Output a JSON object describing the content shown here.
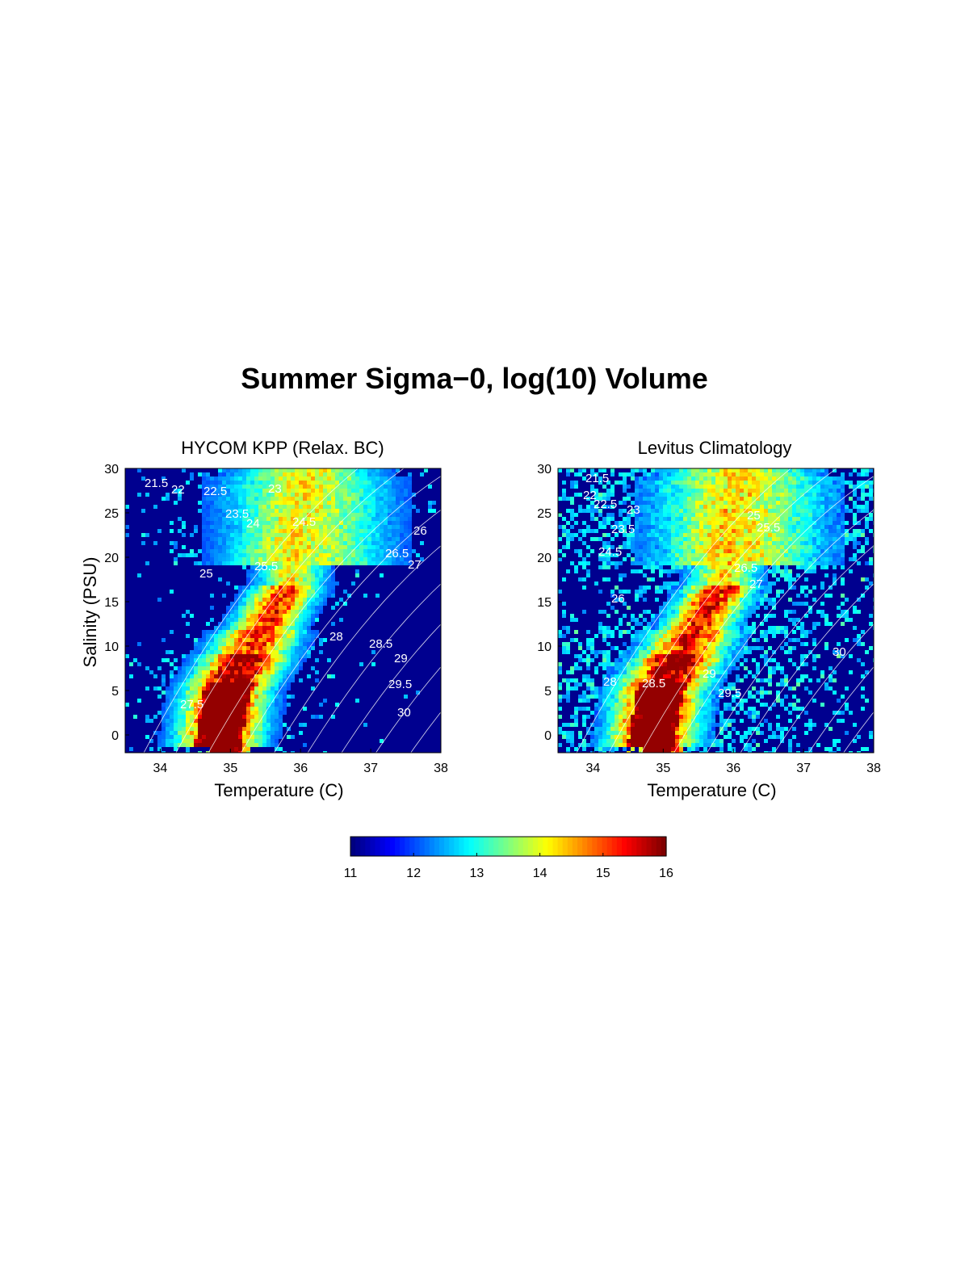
{
  "figure_title": "Summer Sigma−0, log(10) Volume",
  "chart_data": [
    {
      "type": "heatmap",
      "title": "HYCOM KPP (Relax. BC)",
      "xlabel": "Temperature (C)",
      "ylabel": "Salinity (PSU)",
      "xlim": [
        33.5,
        38
      ],
      "ylim": [
        -2,
        30
      ],
      "xticks": [
        "34",
        "35",
        "36",
        "37",
        "38"
      ],
      "yticks": [
        "0",
        "5",
        "10",
        "15",
        "20",
        "25",
        "30"
      ],
      "background_color": "#00008f",
      "contour_labels": [
        "21.5",
        "22",
        "22.5",
        "23",
        "23.5",
        "24",
        "24.5",
        "25",
        "25.5",
        "26",
        "26.5",
        "27",
        "27.5",
        "28",
        "28.5",
        "29",
        "29.5",
        "30"
      ],
      "colormap": "jet",
      "clim": [
        11,
        16
      ]
    },
    {
      "type": "heatmap",
      "title": "Levitus Climatology",
      "xlabel": "Temperature (C)",
      "ylabel": "",
      "xlim": [
        33.5,
        38
      ],
      "ylim": [
        -2,
        30
      ],
      "xticks": [
        "34",
        "35",
        "36",
        "37",
        "38"
      ],
      "yticks": [
        "0",
        "5",
        "10",
        "15",
        "20",
        "25",
        "30"
      ],
      "background_color": "#00008f",
      "contour_labels": [
        "21.5",
        "22",
        "22.5",
        "23",
        "23.5",
        "24",
        "24.5",
        "25",
        "25.5",
        "26",
        "26.5",
        "27",
        "27.5",
        "28",
        "28.5",
        "29",
        "29.5",
        "30"
      ],
      "colormap": "jet",
      "clim": [
        11,
        16
      ]
    }
  ],
  "colorbar": {
    "ticks": [
      "11",
      "12",
      "13",
      "14",
      "15",
      "16"
    ]
  }
}
